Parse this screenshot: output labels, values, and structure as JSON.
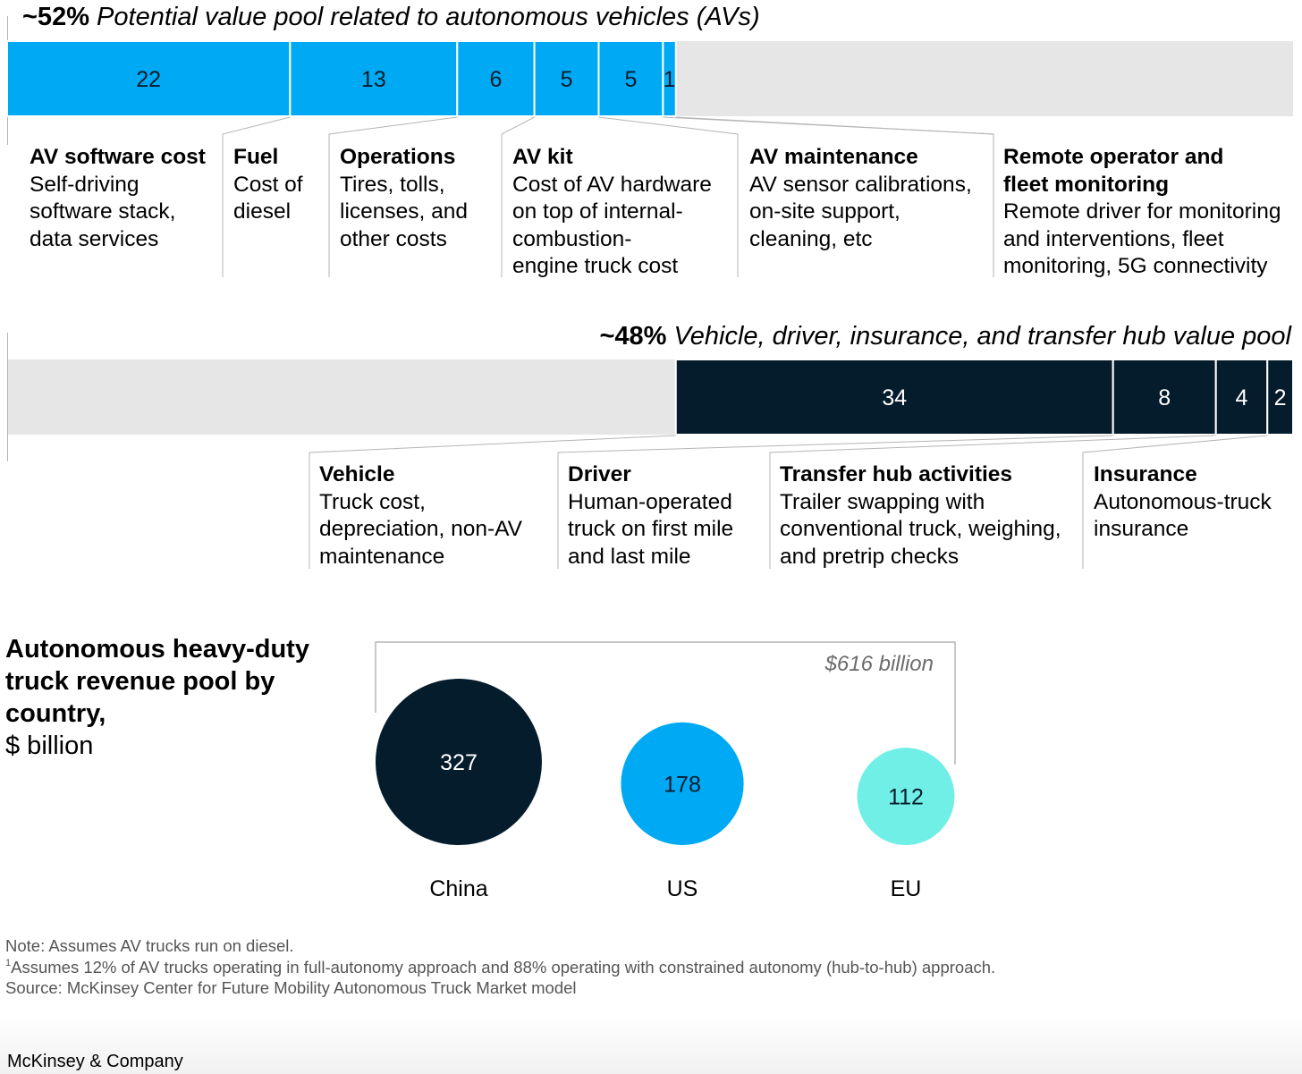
{
  "chart_data": [
    {
      "type": "bar",
      "title_bold": "~52%",
      "title_italic": "Potential value pool related to autonomous vehicles (AVs)",
      "segments": [
        {
          "value": 22,
          "label": "22",
          "heading": "AV software cost",
          "description": "Self-driving\nsoftware stack,\ndata services"
        },
        {
          "value": 13,
          "label": "13",
          "heading": "Fuel",
          "description": "Cost of\ndiesel"
        },
        {
          "value": 6,
          "label": "6",
          "heading": "Operations",
          "description": "Tires, tolls,\nlicenses, and\nother costs"
        },
        {
          "value": 5,
          "label": "5",
          "heading": "AV kit",
          "description": "Cost of AV hardware\non top of internal-\ncombustion-\nengine truck cost"
        },
        {
          "value": 5,
          "label": "5",
          "heading": "AV maintenance",
          "description": "AV sensor calibrations,\non-site support,\ncleaning, etc"
        },
        {
          "value": 1,
          "label": "1",
          "heading": "Remote operator and\nfleet monitoring",
          "description": "Remote driver for monitoring\nand interventions, fleet\nmonitoring, 5G connectivity"
        }
      ],
      "xlim": [
        0,
        100
      ],
      "color": "#00a9f4"
    },
    {
      "type": "bar",
      "title_bold": "~48%",
      "title_italic": "Vehicle, driver, insurance, and transfer hub value pool",
      "segments": [
        {
          "value": 34,
          "label": "34",
          "heading": "Vehicle",
          "description": "Truck cost,\ndepreciation, non-AV\nmaintenance"
        },
        {
          "value": 8,
          "label": "8",
          "heading": "Driver",
          "description": "Human-operated\ntruck on first mile\nand last mile"
        },
        {
          "value": 4,
          "label": "4",
          "heading": "Transfer hub activities",
          "description": "Trailer swapping with\nconventional truck, weighing,\nand pretrip checks"
        },
        {
          "value": 2,
          "label": "2",
          "heading": "Insurance",
          "description": "Autonomous-truck\ninsurance"
        }
      ],
      "xlim": [
        0,
        100
      ],
      "color": "#051c2c"
    },
    {
      "type": "bubble",
      "title_bold": "Autonomous heavy-duty\ntruck revenue pool by\ncountry,",
      "title_unit": "$ billion",
      "total_label": "$616 billion",
      "categories": [
        "China",
        "US",
        "EU"
      ],
      "values": [
        327,
        178,
        112
      ],
      "colors": [
        "#051c2c",
        "#00a9f4",
        "#6fefe6"
      ],
      "label_colors": [
        "#ffffff",
        "#051c2c",
        "#051c2c"
      ]
    }
  ],
  "notes": {
    "note": "Note: Assumes AV trucks run on diesel.",
    "footnote_marker": "1",
    "footnote": "Assumes 12% of AV trucks operating in full-autonomy approach and 88% operating with constrained autonomy (hub-to-hub) approach.",
    "source": "Source: McKinsey Center for Future Mobility Autonomous Truck Market model"
  },
  "brand": "McKinsey & Company",
  "colors": {
    "background_bar": "#e6e6e6",
    "divider": "#b5b5b5",
    "total_label": "#6b6b6b"
  }
}
